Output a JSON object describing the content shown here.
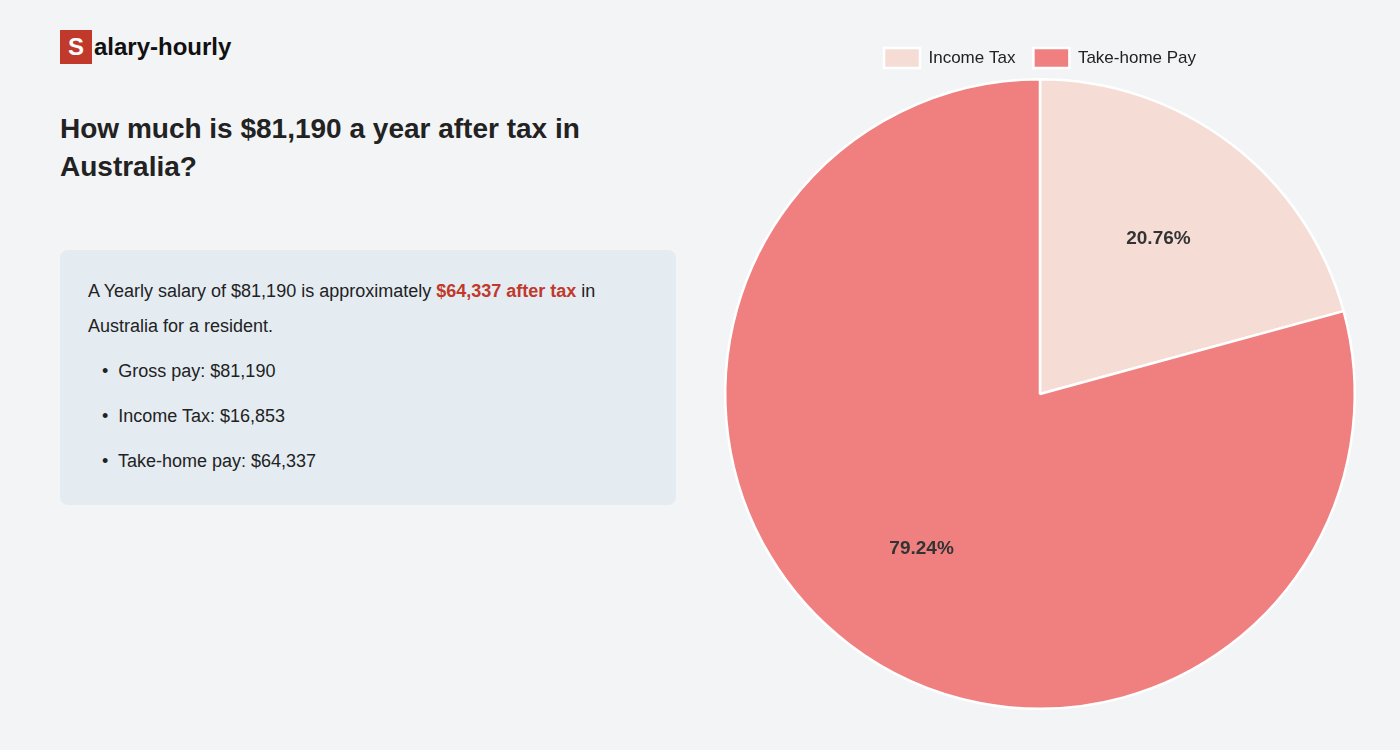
{
  "chart_data": {
    "type": "pie",
    "title": [
      "How much is $81,190 a year after tax in",
      "Australia?"
    ],
    "categories": [
      "Income Tax",
      "Take-home Pay"
    ],
    "values": [
      20.76,
      79.24
    ],
    "value_labels": [
      "20.76%",
      "79.24%"
    ],
    "colors": [
      "#f5ddd5",
      "#f08080"
    ],
    "data_labels": true,
    "legend": "top",
    "annotations": [
      [
        {
          "text": "S",
          "color": "#c0392b"
        },
        {
          "text": "alary-hourly"
        }
      ],
      [
        {
          "text": "A Yearly salary of $81,190 is approximately "
        },
        {
          "text": "$64,337 after tax",
          "color": "#c0392b"
        },
        {
          "text": " in"
        }
      ],
      [
        {
          "text": "Australia for a resident."
        }
      ],
      [
        {
          "text": "•  Gross pay: $81,190"
        }
      ],
      [
        {
          "text": "•  Income Tax: $16,853"
        }
      ],
      [
        {
          "text": "•  Take-home pay: $64,337"
        }
      ]
    ]
  }
}
